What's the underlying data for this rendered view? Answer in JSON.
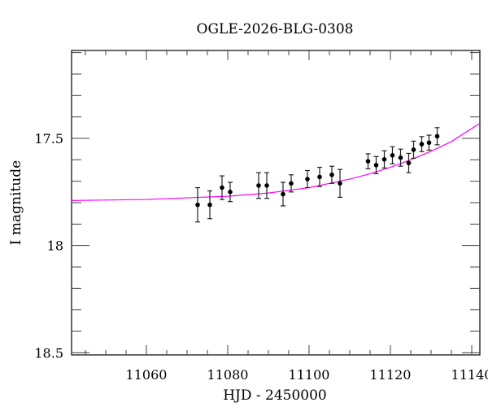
{
  "chart_data": {
    "type": "scatter",
    "title": "OGLE-2026-BLG-0308",
    "xlabel": "HJD - 2450000",
    "ylabel": "I magnitude",
    "xlim": [
      11041.6,
      11142
    ],
    "ylim": [
      17.09,
      18.51
    ],
    "y_inverted": true,
    "xticks": [
      11060,
      11080,
      11100,
      11120,
      11140
    ],
    "xtick_labels": [
      "11060",
      "11080",
      "11100",
      "11120",
      "11140"
    ],
    "yticks": [
      17.5,
      18,
      18.5
    ],
    "ytick_labels": [
      "17.5",
      "18",
      "18.5"
    ],
    "grid": false,
    "colors": {
      "data": "#000000",
      "model": "#ff00ff"
    },
    "series": [
      {
        "kind": "points_with_errorbars",
        "x": [
          11072.6,
          11075.6,
          11078.6,
          11080.6,
          11087.6,
          11089.6,
          11093.6,
          11095.6,
          11099.6,
          11102.6,
          11105.6,
          11107.6,
          11114.5,
          11116.5,
          11118.5,
          11120.5,
          11122.5,
          11124.5,
          11125.7,
          11127.7,
          11129.5,
          11131.5
        ],
        "y": [
          17.81,
          17.81,
          17.73,
          17.75,
          17.72,
          17.72,
          17.76,
          17.71,
          17.69,
          17.68,
          17.67,
          17.71,
          17.607,
          17.625,
          17.598,
          17.579,
          17.59,
          17.615,
          17.553,
          17.527,
          17.52,
          17.49
        ],
        "yerr": [
          0.08,
          0.065,
          0.055,
          0.045,
          0.06,
          0.06,
          0.055,
          0.04,
          0.04,
          0.045,
          0.04,
          0.065,
          0.035,
          0.04,
          0.04,
          0.04,
          0.04,
          0.045,
          0.04,
          0.035,
          0.035,
          0.04
        ]
      },
      {
        "kind": "model_line",
        "x": [
          11041.6,
          11060,
          11080,
          11090,
          11100,
          11110,
          11115,
          11120,
          11125,
          11130,
          11135,
          11142
        ],
        "y": [
          17.79,
          17.785,
          17.77,
          17.755,
          17.73,
          17.69,
          17.665,
          17.635,
          17.6,
          17.56,
          17.515,
          17.43
        ]
      }
    ]
  }
}
